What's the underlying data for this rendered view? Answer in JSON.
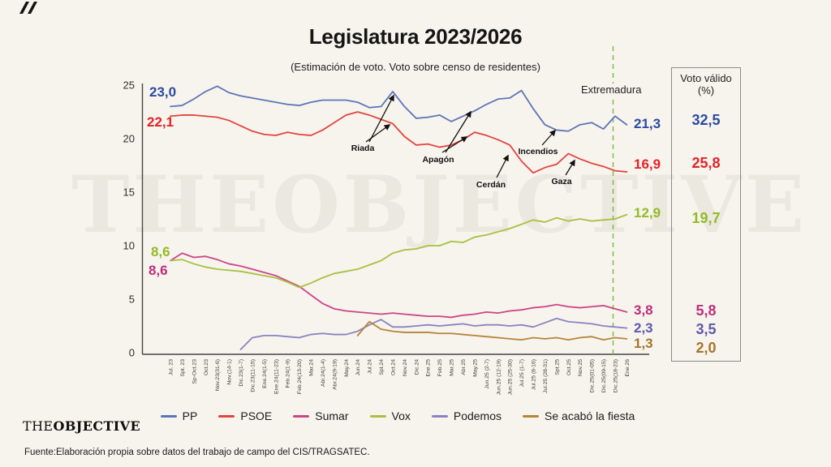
{
  "title": "Legislatura 2023/2026",
  "subtitle": "(Estimación de voto. Voto sobre censo de residentes)",
  "watermark": "THEOBJECTIVE",
  "brand": {
    "logo_the": "THE",
    "logo_objective": "OBJECTIVE"
  },
  "footer": "Fuente:Elaboración propia sobre datos del trabajo de campo del CIS/TRAGSATEC.",
  "event_line_label": "Extremadura",
  "colors": {
    "background": "#f7f4ed",
    "axis": "#444444",
    "event_line": "#79b742",
    "pp_line": "#5f74b8",
    "pp_label": "#2b4aa2",
    "psoe_line": "#e2453e",
    "psoe_label": "#e32229",
    "sumar_line": "#cc4587",
    "sumar_label": "#bc2e7d",
    "vox_line": "#a7c13f",
    "vox_label": "#92bb27",
    "podemos_line": "#8983c1",
    "podemos_label": "#5f58a8",
    "salf_line": "#b68439",
    "salf_label": "#a4742b"
  },
  "annotations": {
    "riada": "Riada",
    "apagon": "Apagón",
    "cerdan": "Cerdán",
    "incendios": "Incendios",
    "gaza": "Gaza"
  },
  "start_labels": [
    {
      "party": "PP",
      "value": "23,0",
      "color": "#2b4aa2"
    },
    {
      "party": "PSOE",
      "value": "22,1",
      "color": "#e32229"
    },
    {
      "party": "Vox",
      "value": "8,6",
      "color": "#92bb27"
    },
    {
      "party": "Sumar",
      "value": "8,6",
      "color": "#bc2e7d"
    }
  ],
  "end_labels": [
    {
      "party": "PP",
      "value": "21,3",
      "color": "#2b4aa2"
    },
    {
      "party": "PSOE",
      "value": "16,9",
      "color": "#e32229"
    },
    {
      "party": "Vox",
      "value": "12,9",
      "color": "#92bb27"
    },
    {
      "party": "Sumar",
      "value": "3,8",
      "color": "#bc2e7d"
    },
    {
      "party": "Podemos",
      "value": "2,3",
      "color": "#5f58a8"
    },
    {
      "party": "Se acabó la fiesta",
      "value": "1,3",
      "color": "#a4742b"
    }
  ],
  "side_panel": {
    "title_line1": "Voto válido",
    "title_line2": "(%)",
    "values": [
      {
        "party": "PP",
        "value": "32,5",
        "color": "#2b4aa2"
      },
      {
        "party": "PSOE",
        "value": "25,8",
        "color": "#e32229"
      },
      {
        "party": "Vox",
        "value": "19,7",
        "color": "#92bb27"
      },
      {
        "party": "Sumar",
        "value": "5,8",
        "color": "#bc2e7d"
      },
      {
        "party": "Podemos",
        "value": "3,5",
        "color": "#5f58a8"
      },
      {
        "party": "Se acabó la fiesta",
        "value": "2,0",
        "color": "#a4742b"
      }
    ]
  },
  "legend": [
    {
      "name": "PP",
      "color": "#5f74b8"
    },
    {
      "name": "PSOE",
      "color": "#e2453e"
    },
    {
      "name": "Sumar",
      "color": "#cc4587"
    },
    {
      "name": "Vox",
      "color": "#a7c13f"
    },
    {
      "name": "Podemos",
      "color": "#8983c1"
    },
    {
      "name": "Se acabó la fiesta",
      "color": "#b68439"
    }
  ],
  "chart_data": {
    "type": "line",
    "title": "Legislatura 2023/2026",
    "subtitle": "(Estimación de voto. Voto sobre censo de residentes)",
    "ylim": [
      0,
      25
    ],
    "yticks": [
      0,
      5,
      10,
      15,
      20,
      25
    ],
    "grid": false,
    "legend_position": "bottom",
    "event_line_at_label": "Dic.25(18-23)",
    "x_labels": [
      "Jul. 23",
      "Spt. 23",
      "Sp-Oct.23",
      "Oct.23",
      "Nov.23(31-6)",
      "Nov.(14-1)",
      "Dic.23(1-7)",
      "Dic.23(11-15)",
      "Ene.24(1-5)",
      "Ene.24(11-23)",
      "Feb.24(1-9)",
      "Feb.24(13-20)",
      "Mar.24",
      "Abr.24(1-4)",
      "Abr.24(9-19)",
      "May.24",
      "Jun.24",
      "Jul.24",
      "Spt.24",
      "Oct.24",
      "Nov.24",
      "Dic.24",
      "Ene.25",
      "Feb.25",
      "Mar.25",
      "Abr.25",
      "May.25",
      "Jun.25 (2-7)",
      "Jun.25 (12-19)",
      "Jun.25 (25-30)",
      "Jul.25 (1-7)",
      "Jul.25 (8-16)",
      "Jul.25 (28-31)",
      "Spt.25",
      "Oct.25",
      "Nov.25",
      "Dic.25(01-05)",
      "Dic.25(09-15)",
      "Dic.25(18-23)",
      "Ene.26"
    ],
    "series": [
      {
        "name": "PP",
        "color": "#5f74b8",
        "values": [
          23.0,
          23.1,
          23.7,
          24.4,
          24.9,
          24.3,
          24.0,
          23.8,
          23.6,
          23.4,
          23.2,
          23.1,
          23.4,
          23.6,
          23.6,
          23.6,
          23.4,
          22.9,
          23.0,
          24.4,
          23.0,
          21.9,
          22.0,
          22.2,
          21.6,
          22.1,
          22.6,
          23.2,
          23.7,
          23.8,
          24.5,
          22.8,
          21.3,
          20.8,
          20.7,
          21.3,
          21.5,
          20.9,
          22.1,
          21.3
        ]
      },
      {
        "name": "PSOE",
        "color": "#e2453e",
        "values": [
          22.1,
          22.2,
          22.2,
          22.1,
          22.0,
          21.7,
          21.2,
          20.7,
          20.4,
          20.3,
          20.6,
          20.4,
          20.3,
          20.8,
          21.5,
          22.2,
          22.5,
          22.2,
          21.8,
          21.4,
          20.2,
          19.4,
          19.5,
          19.2,
          19.4,
          19.9,
          20.6,
          20.3,
          19.9,
          19.4,
          17.9,
          16.8,
          17.3,
          17.6,
          18.6,
          18.1,
          17.7,
          17.4,
          17.0,
          16.9
        ]
      },
      {
        "name": "Sumar",
        "color": "#cc4587",
        "values": [
          8.6,
          9.3,
          8.9,
          9.0,
          8.7,
          8.3,
          8.1,
          7.8,
          7.5,
          7.2,
          6.7,
          6.2,
          5.4,
          4.6,
          4.1,
          3.9,
          3.8,
          3.7,
          3.6,
          3.7,
          3.6,
          3.5,
          3.4,
          3.4,
          3.3,
          3.5,
          3.6,
          3.8,
          3.7,
          3.9,
          4.0,
          4.2,
          4.3,
          4.5,
          4.3,
          4.2,
          4.3,
          4.4,
          4.1,
          3.8
        ]
      },
      {
        "name": "Vox",
        "color": "#a7c13f",
        "values": [
          8.6,
          8.7,
          8.3,
          8.0,
          7.8,
          7.7,
          7.6,
          7.4,
          7.2,
          7.0,
          6.6,
          6.1,
          6.5,
          7.0,
          7.4,
          7.6,
          7.8,
          8.2,
          8.6,
          9.3,
          9.6,
          9.7,
          10.0,
          10.0,
          10.4,
          10.3,
          10.8,
          11.0,
          11.3,
          11.6,
          12.0,
          12.4,
          12.2,
          12.6,
          12.3,
          12.5,
          12.3,
          12.4,
          12.5,
          12.9
        ]
      },
      {
        "name": "Podemos",
        "color": "#8983c1",
        "values": [
          null,
          null,
          null,
          null,
          null,
          null,
          0.3,
          1.4,
          1.6,
          1.6,
          1.5,
          1.4,
          1.7,
          1.8,
          1.7,
          1.7,
          2.0,
          2.6,
          3.1,
          2.4,
          2.4,
          2.5,
          2.6,
          2.5,
          2.6,
          2.7,
          2.5,
          2.6,
          2.6,
          2.5,
          2.6,
          2.4,
          2.8,
          3.2,
          2.9,
          2.8,
          2.7,
          2.5,
          2.4,
          2.3
        ]
      },
      {
        "name": "Se acabó la fiesta",
        "color": "#b68439",
        "values": [
          null,
          null,
          null,
          null,
          null,
          null,
          null,
          null,
          null,
          null,
          null,
          null,
          null,
          null,
          null,
          null,
          1.6,
          2.9,
          2.2,
          2.0,
          1.9,
          1.9,
          1.9,
          1.8,
          1.8,
          1.7,
          1.6,
          1.5,
          1.4,
          1.3,
          1.2,
          1.4,
          1.3,
          1.4,
          1.2,
          1.4,
          1.5,
          1.2,
          1.4,
          1.3
        ]
      }
    ],
    "annotations": [
      "Riada",
      "Apagón",
      "Cerdán",
      "Incendios",
      "Gaza"
    ]
  }
}
